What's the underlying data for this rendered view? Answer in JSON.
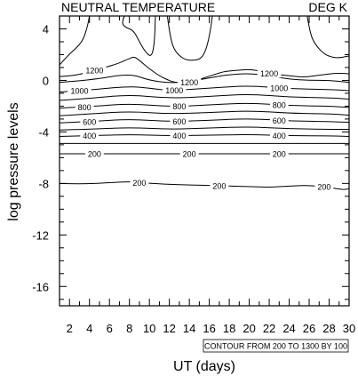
{
  "chart_data": {
    "type": "contour",
    "title_left": "NEUTRAL TEMPERATURE",
    "title_right": "DEG K",
    "xlabel": "UT (days)",
    "ylabel": "log pressure levels",
    "xlim": [
      1,
      30
    ],
    "ylim": [
      -17.5,
      5
    ],
    "x_ticks": [
      2,
      4,
      6,
      8,
      10,
      12,
      14,
      16,
      18,
      20,
      22,
      24,
      26,
      28,
      30
    ],
    "y_ticks": [
      4,
      0,
      -4,
      -8,
      -12,
      -16
    ],
    "contour_info": "CONTOUR FROM 200 TO 1300 BY 100",
    "contours": [
      {
        "level": 200,
        "label": "200",
        "x": [
          1,
          3,
          6,
          8,
          10,
          13,
          16,
          18,
          20,
          22,
          24,
          26,
          28,
          29.5,
          30
        ],
        "y": [
          -8.0,
          -8.05,
          -7.95,
          -7.85,
          -8.0,
          -8.1,
          -8.15,
          -8.2,
          -8.25,
          -8.3,
          -8.2,
          -8.15,
          -8.3,
          -8.5,
          -8.4
        ],
        "labels": [
          [
            9,
            "200"
          ],
          [
            17,
            "200"
          ],
          [
            27.5,
            "200"
          ]
        ]
      },
      {
        "level": 200,
        "label": "200",
        "x": [
          1,
          30
        ],
        "y": [
          -5.7,
          -5.7
        ],
        "labels": [
          [
            4.5,
            "200"
          ],
          [
            14,
            "200"
          ],
          [
            23,
            "200"
          ]
        ]
      },
      {
        "level": 300,
        "label": "",
        "x": [
          1,
          30
        ],
        "y": [
          -4.9,
          -4.9
        ],
        "labels": []
      },
      {
        "level": 400,
        "label": "400",
        "x": [
          1,
          4,
          8,
          12,
          16,
          20,
          24,
          28,
          30
        ],
        "y": [
          -4.35,
          -4.3,
          -4.2,
          -4.3,
          -4.25,
          -4.2,
          -4.3,
          -4.3,
          -4.35
        ],
        "labels": [
          [
            4,
            "400"
          ],
          [
            13,
            "400"
          ],
          [
            23,
            "400"
          ]
        ]
      },
      {
        "level": 500,
        "label": "",
        "x": [
          1,
          4,
          8,
          12,
          16,
          20,
          24,
          28,
          30
        ],
        "y": [
          -3.85,
          -3.8,
          -3.65,
          -3.8,
          -3.7,
          -3.6,
          -3.75,
          -3.8,
          -3.8
        ],
        "labels": []
      },
      {
        "level": 600,
        "label": "600",
        "x": [
          1,
          4,
          8,
          12,
          16,
          20,
          24,
          28,
          30
        ],
        "y": [
          -3.3,
          -3.2,
          -3.0,
          -3.2,
          -3.1,
          -2.95,
          -3.15,
          -3.2,
          -3.25
        ],
        "labels": [
          [
            4,
            "600"
          ],
          [
            13,
            "600"
          ],
          [
            23,
            "600"
          ]
        ]
      },
      {
        "level": 700,
        "label": "",
        "x": [
          1,
          4,
          8,
          12,
          16,
          20,
          24,
          28,
          30
        ],
        "y": [
          -2.75,
          -2.6,
          -2.4,
          -2.6,
          -2.5,
          -2.35,
          -2.55,
          -2.6,
          -2.7
        ],
        "labels": []
      },
      {
        "level": 800,
        "label": "800",
        "x": [
          1,
          4,
          8,
          12,
          16,
          20,
          24,
          28,
          30
        ],
        "y": [
          -2.15,
          -2.05,
          -1.8,
          -2.05,
          -1.9,
          -1.75,
          -1.95,
          -2.0,
          -2.1
        ],
        "labels": [
          [
            3.5,
            "800"
          ],
          [
            13,
            "800"
          ],
          [
            23,
            "800"
          ]
        ]
      },
      {
        "level": 900,
        "label": "",
        "x": [
          1,
          4,
          8,
          12,
          16,
          20,
          24,
          28,
          30
        ],
        "y": [
          -1.55,
          -1.4,
          -1.1,
          -1.4,
          -1.25,
          -1.05,
          -1.3,
          -1.35,
          -1.45
        ],
        "labels": []
      },
      {
        "level": 1000,
        "label": "1000",
        "x": [
          1,
          4,
          8,
          10,
          12,
          16,
          20,
          24,
          28,
          30
        ],
        "y": [
          -0.9,
          -0.75,
          -0.45,
          -0.6,
          -0.8,
          -0.6,
          -0.4,
          -0.65,
          -0.7,
          -0.8
        ],
        "labels": [
          [
            3,
            "1000"
          ],
          [
            12.5,
            "1000"
          ],
          [
            23,
            "1000"
          ]
        ]
      },
      {
        "level": 1100,
        "label": "",
        "x": [
          1,
          4,
          8,
          10,
          12,
          14,
          16,
          18,
          20,
          22,
          24,
          26,
          28,
          30
        ],
        "y": [
          -0.15,
          0.0,
          0.55,
          0.0,
          -0.2,
          -0.1,
          0.2,
          0.45,
          0.55,
          0.35,
          0.1,
          0.0,
          0.0,
          -0.15
        ],
        "labels": []
      },
      {
        "level": 1200,
        "label": "1200",
        "x": [
          1,
          2,
          3,
          4,
          5,
          6,
          7,
          8,
          8.5,
          9,
          10,
          11,
          11.8,
          12.5,
          13.5,
          14.5,
          15.5,
          16.5,
          17.5,
          19,
          20,
          21,
          22,
          24,
          25.5,
          26.5,
          27.5,
          28.5,
          29.5,
          30
        ],
        "y": [
          0.3,
          0.35,
          0.45,
          0.7,
          0.9,
          1.1,
          1.35,
          1.7,
          1.85,
          1.55,
          0.9,
          0.35,
          0.05,
          -0.15,
          -0.2,
          -0.05,
          0.2,
          0.45,
          0.7,
          0.8,
          0.85,
          0.75,
          0.55,
          0.35,
          0.25,
          0.35,
          0.45,
          0.55,
          0.55,
          0.5
        ],
        "labels": [
          [
            4.5,
            "1200"
          ],
          [
            14,
            "1200"
          ],
          [
            22,
            "1200"
          ]
        ]
      },
      {
        "level": 1300,
        "label": "",
        "x": [
          1,
          1.8,
          2.8,
          3.4,
          3.8,
          4.0
        ],
        "y": [
          1.2,
          1.9,
          2.6,
          3.2,
          4.2,
          5.0
        ],
        "labels": []
      },
      {
        "level": 1300,
        "label": "",
        "x": [
          7.5,
          7.2,
          7.6,
          8.4,
          9.0,
          9.6,
          10.2,
          10.5,
          10.6
        ],
        "y": [
          5.0,
          4.5,
          4.1,
          3.9,
          3.0,
          2.2,
          1.8,
          2.8,
          5.0
        ],
        "labels": []
      },
      {
        "level": 1300,
        "label": "",
        "x": [
          11.8,
          12.1,
          12.6,
          13.5,
          14.5,
          15.2,
          15.7,
          16.1,
          16.3
        ],
        "y": [
          5.0,
          3.2,
          2.2,
          1.6,
          1.55,
          1.7,
          2.4,
          3.8,
          5.0
        ],
        "labels": []
      },
      {
        "level": 1300,
        "label": "",
        "x": [
          25.8,
          26.1,
          26.6,
          27.4,
          28.2,
          29.0,
          29.7,
          30.0
        ],
        "y": [
          5.0,
          3.6,
          2.8,
          2.1,
          1.8,
          1.75,
          1.85,
          1.9
        ],
        "labels": []
      }
    ]
  }
}
